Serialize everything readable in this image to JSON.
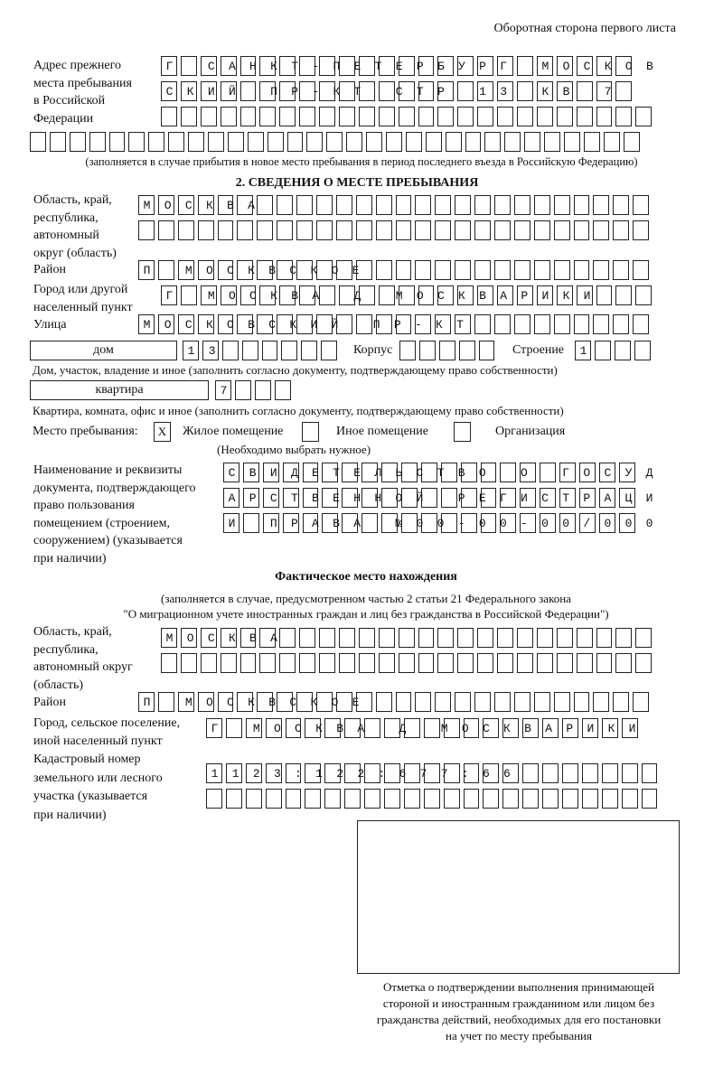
{
  "header": {
    "page_side": "Оборотная сторона первого листа"
  },
  "prev_address": {
    "label": [
      "Адрес прежнего",
      "места пребывания",
      "в Российской",
      "Федерации"
    ],
    "rows": [
      "Г САНКТ-ПЕТЕРБУРГ МОСКОВ",
      "СКИЙ ПР-КТ СТР 13 КВ 7  ",
      "                         ",
      "                               "
    ],
    "note": "(заполняется в случае прибытия в новое место пребывания в период последнего въезда в Российскую Федерацию)"
  },
  "stay": {
    "heading": "2. СВЕДЕНИЯ О МЕСТЕ ПРЕБЫВАНИЯ",
    "region_label": [
      "Область, край,",
      "республика,",
      "автономный",
      "округ (область)"
    ],
    "region_rows": [
      "МОСКВА                    ",
      "                          "
    ],
    "district_label": "Район",
    "district_row": "П МОСКВСКОЕ               ",
    "city_label": [
      "Город или другой",
      "населенный пункт"
    ],
    "city_row": "Г МОСКВА Д МОСКВАРИКИ    ",
    "street_label": "Улица",
    "street_row": "МОСКОВСКИЙ ПР-КТ          ",
    "house_type": "дом",
    "house_row": "13      ",
    "korpus_label": "Корпус",
    "korpus_row": "     ",
    "building_label": "Строение",
    "building_row": "1   ",
    "house_caption": "Дом, участок, владение и иное (заполнить согласно документу, подтверждающему право собственности)",
    "flat_type": "квартира",
    "flat_row": "7   ",
    "flat_caption": "Квартира, комната, офис и иное (заполнить согласно документу, подтверждающему право собственности)",
    "place_label": "Место пребывания:",
    "place_options": [
      {
        "label": "Жилое помещение",
        "mark": "X"
      },
      {
        "label": "Иное помещение",
        "mark": ""
      },
      {
        "label": "Организация",
        "mark": ""
      }
    ],
    "place_hint": "(Необходимо выбрать нужное)",
    "doc_label": [
      "Наименование и реквизиты",
      "документа, подтверждающего",
      "право пользования",
      "помещением (строением,",
      "сооружением) (указывается",
      "при наличии)"
    ],
    "doc_rows": [
      "СВИДЕТЕЛЬСТВО О ГОСУД",
      "АРСТВЕННОЙ РЕГИСТРАЦИ",
      "И ПРАВА №00-00-00/000"
    ]
  },
  "actual": {
    "heading": "Фактическое место нахождения",
    "subtitle": [
      "(заполняется в случае, предусмотренном частью 2 статьи 21 Федерального закона",
      "\"О миграционном учете иностранных граждан и лиц без гражданства в Российской Федерации\")"
    ],
    "region_label": [
      "Область, край,",
      "республика,",
      "автономный округ",
      "(область)"
    ],
    "region_rows": [
      "МОСКВА                   ",
      "                         "
    ],
    "district_label": "Район",
    "district_row": "П МОСКВСКОЕ               ",
    "city_label": [
      "Город, сельское поселение,",
      "иной населенный пункт"
    ],
    "city_row": "Г МОСКВА Д МОСКВАРИКИ ",
    "cadastre_label": [
      "Кадастровый номер",
      "земельного или лесного",
      "участка (указывается",
      "при наличии)"
    ],
    "cadastre_rows": [
      "1123:122:677:66        ",
      "                       "
    ]
  },
  "stamp": {
    "caption": [
      "Отметка о подтверждении выполнения принимающей",
      "стороной и иностранным гражданином или лицом без",
      "гражданства действий, необходимых для его постановки",
      "на учет по месту пребывания"
    ]
  }
}
